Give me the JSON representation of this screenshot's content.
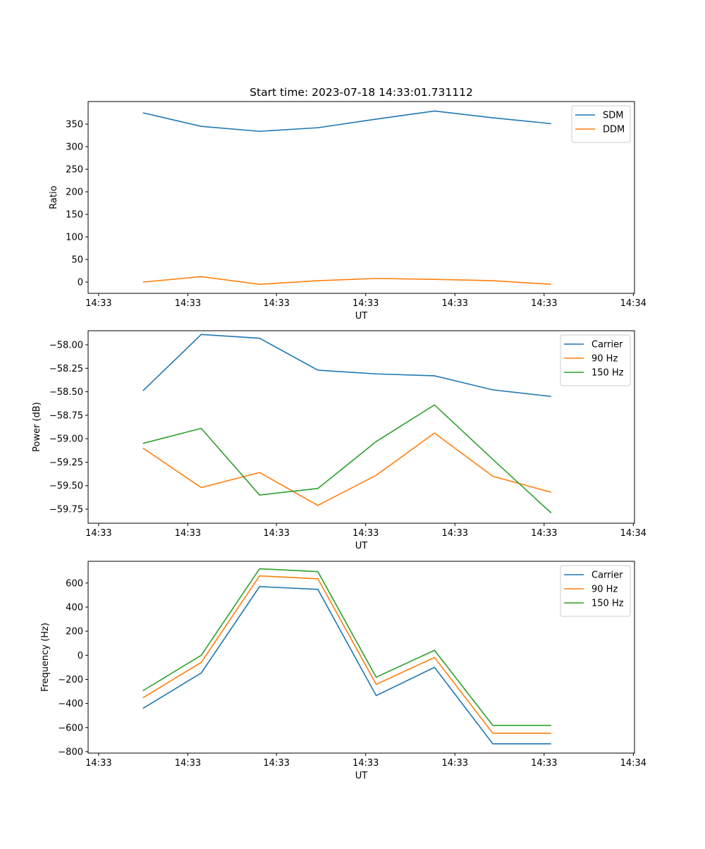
{
  "chart_data": [
    {
      "type": "line",
      "title": "Start time: 2023-07-18 14:33:01.731112",
      "xlabel": "UT",
      "ylabel": "Ratio",
      "x": [
        0,
        1,
        2,
        3,
        4,
        5,
        6,
        7
      ],
      "xlim": [
        -0.94,
        8.43
      ],
      "xticks": [
        -0.76,
        0.77,
        2.29,
        3.82,
        5.35,
        6.88,
        8.41
      ],
      "xtick_labels": [
        "14:33",
        "14:33",
        "14:33",
        "14:33",
        "14:33",
        "14:33",
        "14:34"
      ],
      "ylim": [
        -25,
        400
      ],
      "yticks": [
        0,
        50,
        100,
        150,
        200,
        250,
        300,
        350
      ],
      "ytick_labels": [
        "0",
        "50",
        "100",
        "150",
        "200",
        "250",
        "300",
        "350"
      ],
      "legend": "top-right",
      "series": [
        {
          "name": "SDM",
          "color": "#1f77b4",
          "values": [
            375,
            345,
            334,
            342,
            361,
            379,
            364,
            351
          ]
        },
        {
          "name": "DDM",
          "color": "#ff7f0e",
          "values": [
            0,
            12,
            -5,
            3,
            8,
            6,
            3,
            -5
          ]
        }
      ]
    },
    {
      "type": "line",
      "title": "",
      "xlabel": "UT",
      "ylabel": "Power (dB)",
      "x": [
        0,
        1,
        2,
        3,
        4,
        5,
        6,
        7
      ],
      "xlim": [
        -0.94,
        8.43
      ],
      "xticks": [
        -0.76,
        0.77,
        2.29,
        3.82,
        5.35,
        6.88,
        8.41
      ],
      "xtick_labels": [
        "14:33",
        "14:33",
        "14:33",
        "14:33",
        "14:33",
        "14:33",
        "14:34"
      ],
      "ylim": [
        -59.9,
        -57.85
      ],
      "yticks": [
        -58.0,
        -58.25,
        -58.5,
        -58.75,
        -59.0,
        -59.25,
        -59.5,
        -59.75
      ],
      "ytick_labels": [
        "−58.00",
        "−58.25",
        "−58.50",
        "−58.75",
        "−59.00",
        "−59.25",
        "−59.50",
        "−59.75"
      ],
      "legend": "top-right",
      "series": [
        {
          "name": "Carrier",
          "color": "#1f77b4",
          "values": [
            -58.49,
            -57.89,
            -57.93,
            -58.27,
            -58.31,
            -58.33,
            -58.48,
            -58.55
          ]
        },
        {
          "name": "90 Hz",
          "color": "#ff7f0e",
          "values": [
            -59.1,
            -59.52,
            -59.36,
            -59.71,
            -59.39,
            -58.94,
            -59.4,
            -59.57
          ]
        },
        {
          "name": "150 Hz",
          "color": "#2ca02c",
          "values": [
            -59.05,
            -58.89,
            -59.6,
            -59.53,
            -59.03,
            -58.64,
            -59.22,
            -59.79
          ]
        }
      ]
    },
    {
      "type": "line",
      "title": "",
      "xlabel": "UT",
      "ylabel": "Frequency (Hz)",
      "x": [
        0,
        1,
        2,
        3,
        4,
        5,
        6,
        7
      ],
      "xlim": [
        -0.94,
        8.43
      ],
      "xticks": [
        -0.76,
        0.77,
        2.29,
        3.82,
        5.35,
        6.88,
        8.41
      ],
      "xtick_labels": [
        "14:33",
        "14:33",
        "14:33",
        "14:33",
        "14:33",
        "14:33",
        "14:34"
      ],
      "ylim": [
        -812,
        780
      ],
      "yticks": [
        -800,
        -600,
        -400,
        -200,
        0,
        200,
        400,
        600
      ],
      "ytick_labels": [
        "−800",
        "−600",
        "−400",
        "−200",
        "0",
        "200",
        "400",
        "600"
      ],
      "legend": "top-right",
      "series": [
        {
          "name": "Carrier",
          "color": "#1f77b4",
          "values": [
            -441,
            -147,
            570,
            547,
            -335,
            -100,
            -735,
            -735
          ]
        },
        {
          "name": "90 Hz",
          "color": "#ff7f0e",
          "values": [
            -353,
            -59,
            659,
            635,
            -241,
            -18,
            -647,
            -647
          ]
        },
        {
          "name": "150 Hz",
          "color": "#2ca02c",
          "values": [
            -294,
            0,
            718,
            694,
            -182,
            41,
            -582,
            -582
          ]
        }
      ]
    }
  ]
}
